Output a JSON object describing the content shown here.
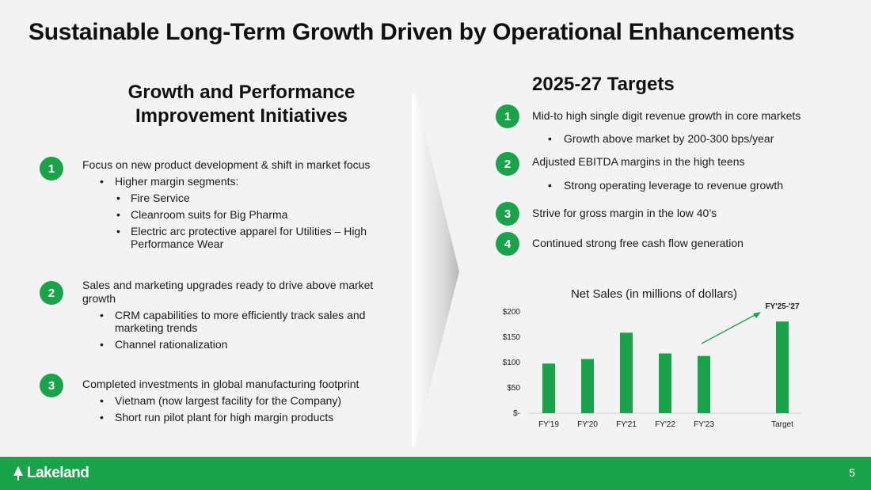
{
  "title": "Sustainable Long-Term Growth Driven by Operational Enhancements",
  "left": {
    "heading_line1": "Growth and Performance",
    "heading_line2": "Improvement Initiatives",
    "initiatives": [
      {
        "number": "1",
        "title": "Focus on new product development & shift in market focus",
        "bullets": [
          "Higher margin segments:"
        ],
        "sub_bullets": [
          "Fire Service",
          "Cleanroom suits for Big Pharma",
          "Electric arc protective apparel for Utilities – High Performance Wear"
        ]
      },
      {
        "number": "2",
        "title": "Sales and marketing upgrades ready to drive above market growth",
        "bullets": [
          "CRM capabilities to more efficiently track sales and marketing trends",
          "Channel rationalization"
        ]
      },
      {
        "number": "3",
        "title": "Completed investments in global manufacturing footprint",
        "bullets": [
          "Vietnam (now largest facility for the Company)",
          "Short run pilot plant for high margin products"
        ]
      }
    ]
  },
  "right": {
    "heading": "2025-27 Targets",
    "targets": [
      {
        "number": "1",
        "text": "Mid-to high single digit revenue growth in core markets",
        "sub": "Growth above market by 200-300 bps/year"
      },
      {
        "number": "2",
        "text": "Adjusted EBITDA margins in the high teens",
        "sub": "Strong operating leverage to revenue growth"
      },
      {
        "number": "3",
        "text": "Strive for gross margin in the low 40’s"
      },
      {
        "number": "4",
        "text": "Continued strong free cash flow generation"
      }
    ]
  },
  "chart_data": {
    "type": "bar",
    "title": "Net Sales (in millions of dollars)",
    "categories": [
      "FY'19",
      "FY'20",
      "FY'21",
      "FY'22",
      "FY'23",
      "Target"
    ],
    "values": [
      98,
      107,
      159,
      118,
      113,
      181
    ],
    "ylim": [
      0,
      200
    ],
    "yticks": [
      0,
      50,
      100,
      150,
      200
    ],
    "ytick_labels": [
      "$-",
      "$50",
      "$100",
      "$150",
      "$200"
    ],
    "annotation": "FY'25-'27",
    "bar_color": "#1aa34a"
  },
  "footer": {
    "logo": "Lakeland",
    "page_number": "5"
  },
  "colors": {
    "accent": "#1aa34a",
    "background": "#f3f3f3"
  }
}
